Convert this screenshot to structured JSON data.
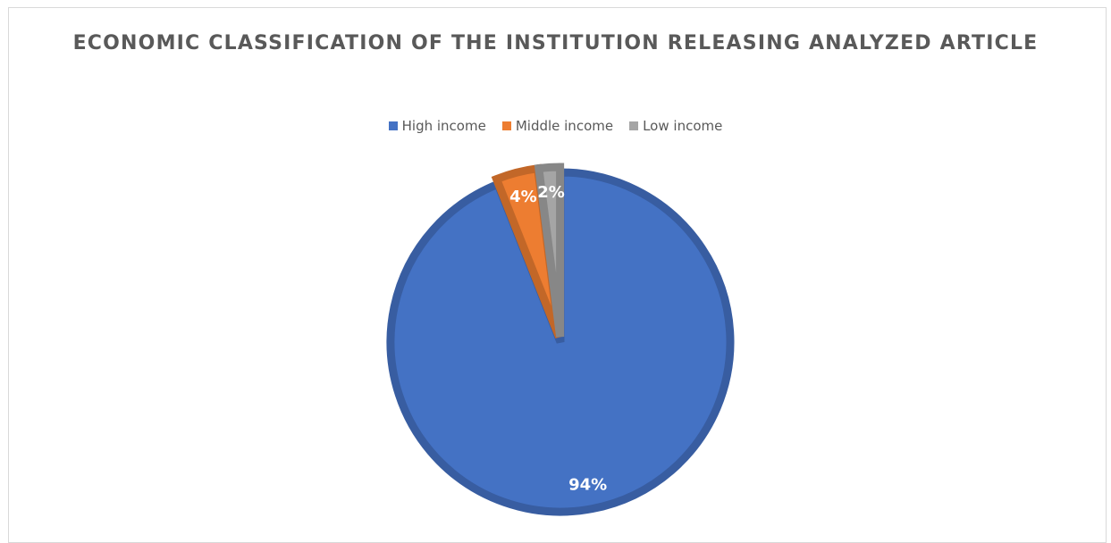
{
  "chart_data": {
    "type": "pie",
    "title": "ECONOMIC CLASSIFICATION OF THE INSTITUTION RELEASING ANALYZED ARTICLE",
    "legend_position": "top",
    "categories": [
      "High income",
      "Middle income",
      "Low income"
    ],
    "values": [
      94,
      4,
      2
    ],
    "data_labels": [
      "94%",
      "4%",
      "2%"
    ],
    "colors": [
      "#4472C4",
      "#ED7D31",
      "#A5A5A5"
    ],
    "exploded_slices": [
      "Middle income",
      "Low income"
    ]
  }
}
